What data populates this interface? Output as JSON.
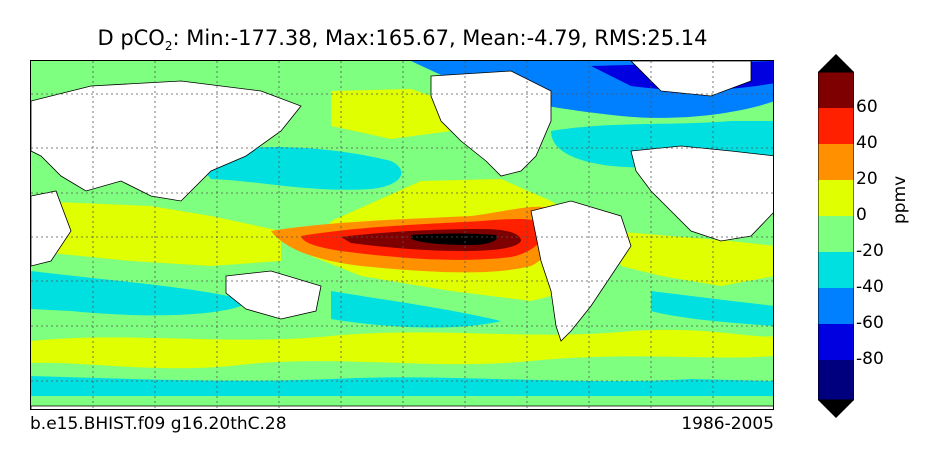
{
  "title": {
    "prefix": "D pCO",
    "subscript": "2",
    "stats": ": Min:-177.38, Max:165.67, Mean:-4.79, RMS:25.14"
  },
  "footer": {
    "run_name": "b.e15.BHIST.f09 g16.20thC.28",
    "period": "1986-2005"
  },
  "colorbar": {
    "unit": "ppmv",
    "tick_labels": [
      "60",
      "40",
      "20",
      "0",
      "-20",
      "-40",
      "-60",
      "-80"
    ],
    "colors": [
      "#00007f",
      "#0000e0",
      "#0080ff",
      "#00e0e0",
      "#7fff7f",
      "#e0ff00",
      "#ff9000",
      "#ff2000",
      "#7f0000"
    ],
    "extend_low_color": "#000000",
    "extend_high_color": "#000000"
  },
  "map": {
    "land_color": "#ffffff",
    "background_color": "#7fff7f",
    "grid_lines": "dotted"
  }
}
